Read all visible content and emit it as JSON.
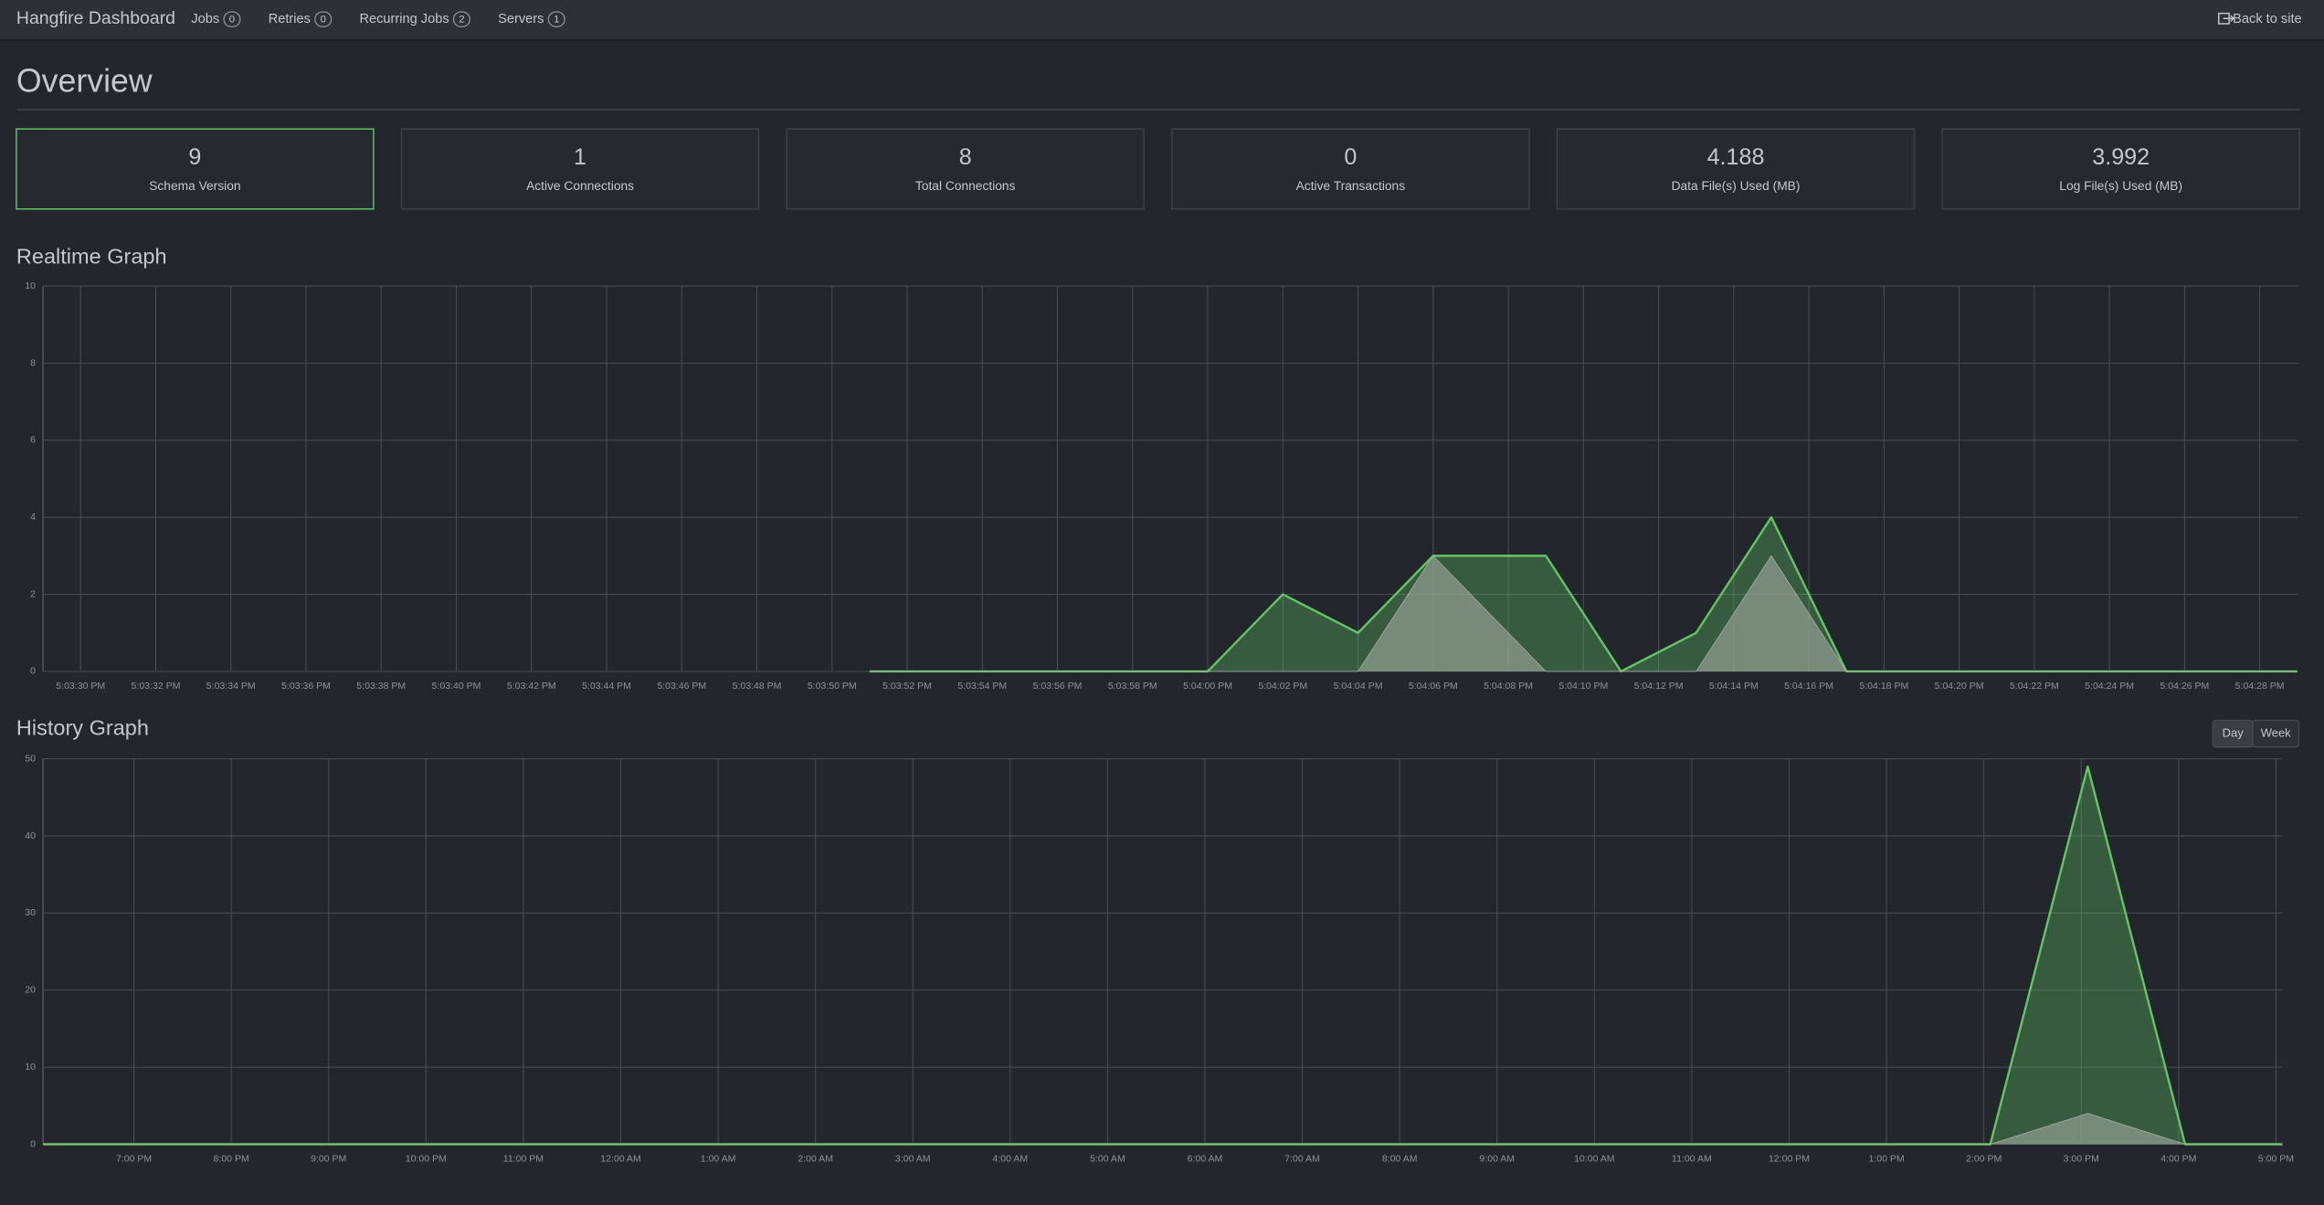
{
  "navbar": {
    "brand": "Hangfire Dashboard",
    "items": [
      {
        "label": "Jobs",
        "count": 0
      },
      {
        "label": "Retries",
        "count": 0
      },
      {
        "label": "Recurring Jobs",
        "count": 2
      },
      {
        "label": "Servers",
        "count": 1
      }
    ],
    "back_link": "Back to site"
  },
  "page_title": "Overview",
  "stats": [
    {
      "value": 9,
      "label": "Schema Version"
    },
    {
      "value": 1,
      "label": "Active Connections"
    },
    {
      "value": 8,
      "label": "Total Connections"
    },
    {
      "value": 0,
      "label": "Active Transactions"
    },
    {
      "value": 4.188,
      "label": "Data File(s) Used (MB)"
    },
    {
      "value": 3.992,
      "label": "Log File(s) Used (MB)"
    }
  ],
  "history_range_buttons": [
    "Day",
    "Week"
  ],
  "chart_data": [
    {
      "type": "area",
      "title": "Realtime Graph",
      "x": [
        "5:03:51 PM",
        "5:04:00 PM",
        "5:04:02 PM",
        "5:04:04 PM",
        "5:04:06 PM",
        "5:04:09 PM",
        "5:04:11 PM",
        "5:04:13 PM",
        "5:04:15 PM",
        "5:04:17 PM",
        "5:04:29 PM"
      ],
      "series": [
        {
          "color": "#62c462",
          "values": [
            0,
            0,
            2,
            1,
            3,
            3,
            0,
            1,
            4,
            0,
            0
          ]
        },
        {
          "color": "#a3aca5",
          "values": [
            0,
            0,
            0,
            0,
            3,
            0,
            0,
            0,
            3,
            0,
            0
          ]
        }
      ],
      "xlim": [
        "5:03:29 PM",
        "5:04:29 PM"
      ],
      "xticks": [
        "5:03:30 PM",
        "5:03:32 PM",
        "5:03:34 PM",
        "5:03:36 PM",
        "5:03:38 PM",
        "5:03:40 PM",
        "5:03:42 PM",
        "5:03:44 PM",
        "5:03:46 PM",
        "5:03:48 PM",
        "5:03:50 PM",
        "5:03:52 PM",
        "5:03:54 PM",
        "5:03:56 PM",
        "5:03:58 PM",
        "5:04:00 PM",
        "5:04:02 PM",
        "5:04:04 PM",
        "5:04:06 PM",
        "5:04:08 PM",
        "5:04:10 PM",
        "5:04:12 PM",
        "5:04:14 PM",
        "5:04:16 PM",
        "5:04:18 PM",
        "5:04:20 PM",
        "5:04:22 PM",
        "5:04:24 PM",
        "5:04:26 PM",
        "5:04:28 PM"
      ],
      "ylim": [
        0,
        10
      ],
      "yticks": [
        0,
        2,
        4,
        6,
        8,
        10
      ],
      "grid": true
    },
    {
      "type": "area",
      "title": "History Graph",
      "x": [
        "6:04 PM",
        "7:04 PM",
        "8:04 PM",
        "9:04 PM",
        "10:04 PM",
        "11:04 PM",
        "12:04 AM",
        "1:04 AM",
        "2:04 AM",
        "3:04 AM",
        "4:04 AM",
        "5:04 AM",
        "6:04 AM",
        "7:04 AM",
        "8:04 AM",
        "9:04 AM",
        "10:04 AM",
        "11:04 AM",
        "12:04 PM",
        "1:04 PM",
        "2:04 PM",
        "3:04 PM",
        "4:04 PM",
        "5:04 PM"
      ],
      "series": [
        {
          "color": "#62c462",
          "values": [
            0,
            0,
            0,
            0,
            0,
            0,
            0,
            0,
            0,
            0,
            0,
            0,
            0,
            0,
            0,
            0,
            0,
            0,
            0,
            0,
            0,
            49,
            0,
            0
          ]
        },
        {
          "color": "#a3aca5",
          "values": [
            0,
            0,
            0,
            0,
            0,
            0,
            0,
            0,
            0,
            0,
            0,
            0,
            0,
            0,
            0,
            0,
            0,
            0,
            0,
            0,
            0,
            4,
            0,
            0
          ]
        }
      ],
      "xlim": [
        "6:04 PM",
        "5:04 PM"
      ],
      "xticks": [
        "7:00 PM",
        "8:00 PM",
        "9:00 PM",
        "10:00 PM",
        "11:00 PM",
        "12:00 AM",
        "1:00 AM",
        "2:00 AM",
        "3:00 AM",
        "4:00 AM",
        "5:00 AM",
        "6:00 AM",
        "7:00 AM",
        "8:00 AM",
        "9:00 AM",
        "10:00 AM",
        "11:00 AM",
        "12:00 PM",
        "1:00 PM",
        "2:00 PM",
        "3:00 PM",
        "4:00 PM",
        "5:00 PM"
      ],
      "ylim": [
        0,
        50
      ],
      "yticks": [
        0,
        10,
        20,
        30,
        40,
        50
      ],
      "grid": true
    }
  ]
}
